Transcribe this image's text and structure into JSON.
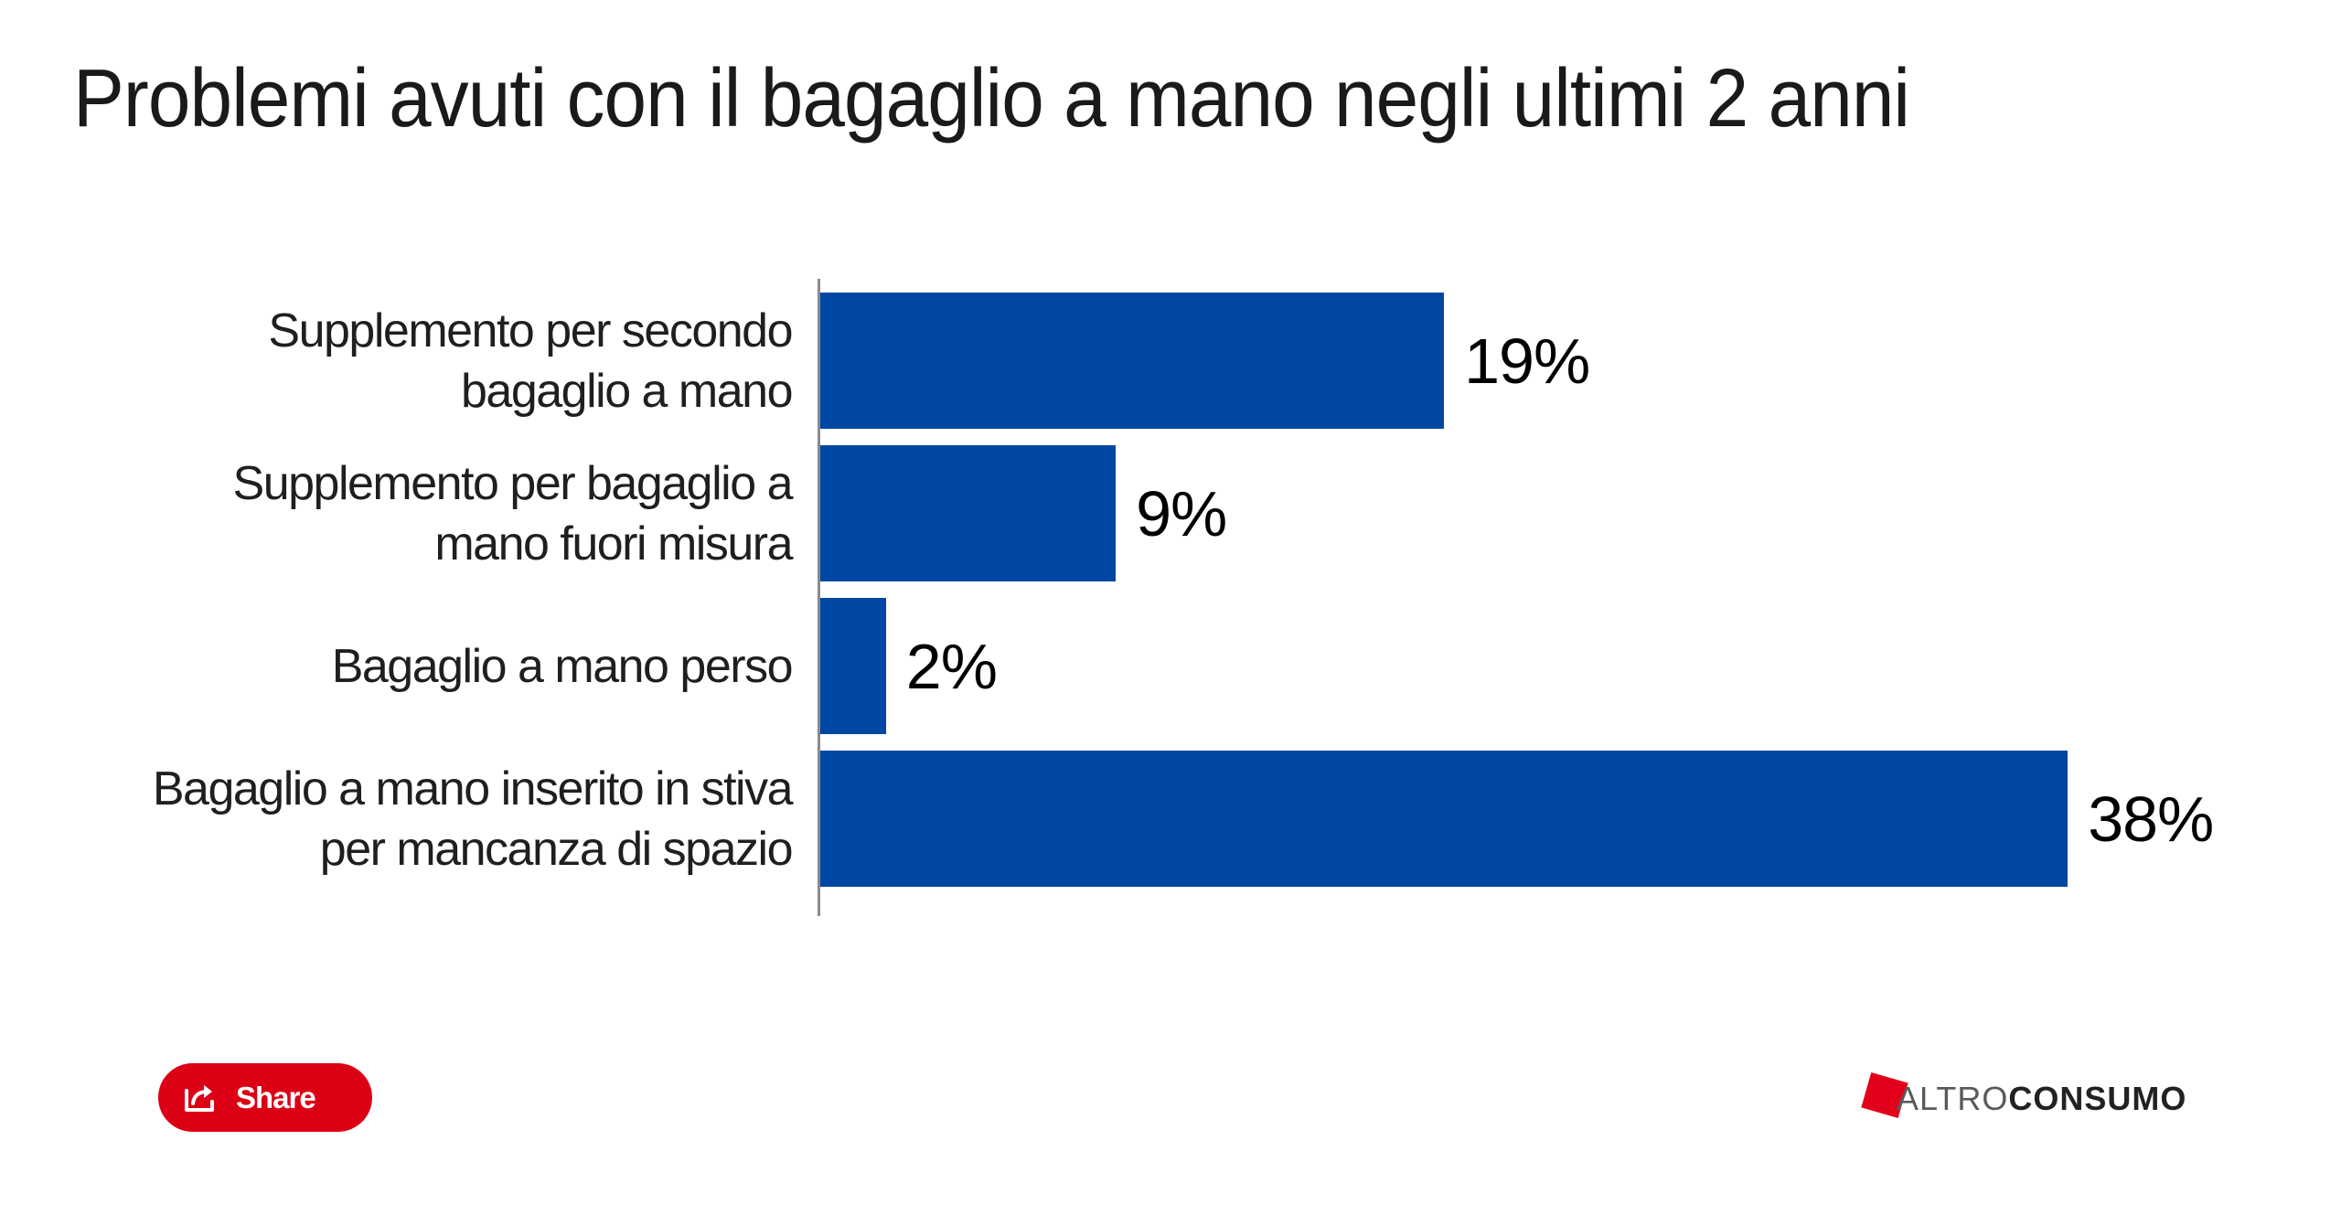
{
  "title": "Problemi avuti con il bagaglio a mano negli ultimi 2 anni",
  "colors": {
    "bar": "#0047a3",
    "share_button": "#dc0015",
    "logo_mark": "#e2001a"
  },
  "chart": {
    "rows": [
      {
        "label_lines": [
          "Supplemento per secondo",
          "bagaglio a mano"
        ],
        "value": 19,
        "value_label": "19%"
      },
      {
        "label_lines": [
          "Supplemento per bagaglio a",
          "mano fuori misura"
        ],
        "value": 9,
        "value_label": "9%"
      },
      {
        "label_lines": [
          "Bagaglio a mano perso"
        ],
        "value": 2,
        "value_label": "2%"
      },
      {
        "label_lines": [
          "Bagaglio a mano inserito in stiva",
          "per mancanza di spazio"
        ],
        "value": 38,
        "value_label": "38%"
      }
    ]
  },
  "chart_data": {
    "type": "bar",
    "orientation": "horizontal",
    "title": "Problemi avuti con il bagaglio a mano negli ultimi 2 anni",
    "categories": [
      "Supplemento per secondo bagaglio a mano",
      "Supplemento per bagaglio a mano fuori misura",
      "Bagaglio a mano perso",
      "Bagaglio a mano inserito in stiva per mancanza di spazio"
    ],
    "values": [
      19,
      9,
      2,
      38
    ],
    "value_labels": [
      "19%",
      "9%",
      "2%",
      "38%"
    ],
    "unit": "%",
    "xlabel": "",
    "ylabel": "",
    "grid": false,
    "legend": null,
    "series_color": "#0047a3"
  },
  "footer": {
    "share_label": "Share",
    "share_icon": "share-icon",
    "logo": {
      "part1": "ALTRO",
      "part2": "CONSUMO"
    }
  }
}
